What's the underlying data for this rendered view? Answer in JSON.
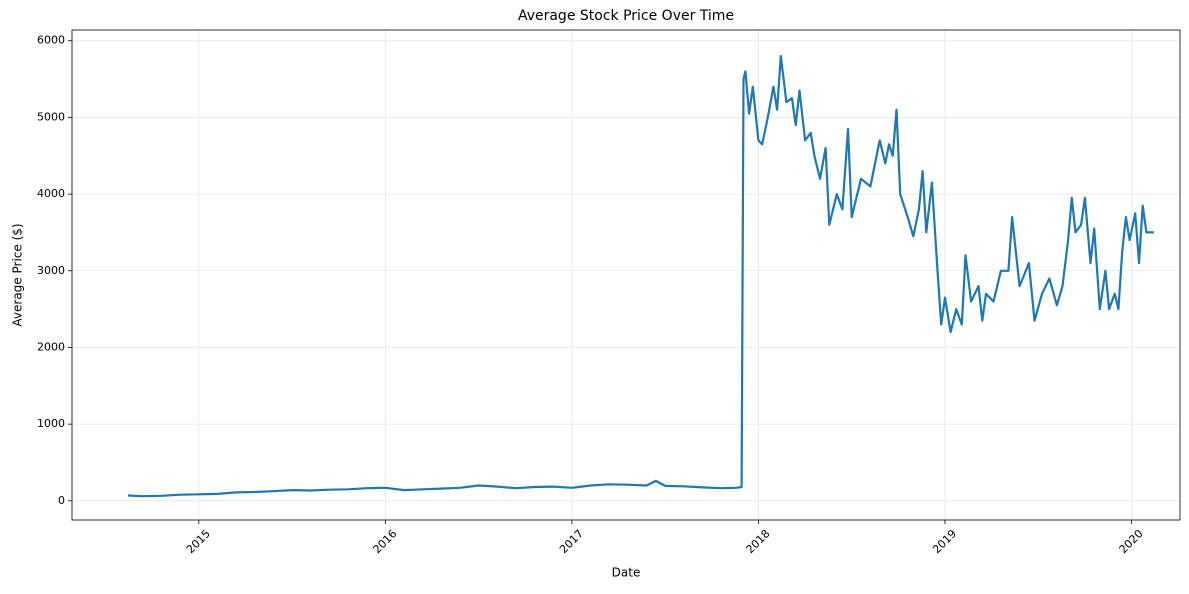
{
  "chart_data": {
    "type": "line",
    "title": "Average Stock Price Over Time",
    "x_label": "Date",
    "y_label": "Average Price ($)",
    "x": [
      2014.62,
      2014.7,
      2014.8,
      2014.9,
      2015.0,
      2015.1,
      2015.2,
      2015.3,
      2015.4,
      2015.5,
      2015.6,
      2015.7,
      2015.8,
      2015.9,
      2016.0,
      2016.1,
      2016.2,
      2016.3,
      2016.4,
      2016.5,
      2016.6,
      2016.7,
      2016.8,
      2016.9,
      2017.0,
      2017.1,
      2017.2,
      2017.3,
      2017.4,
      2017.45,
      2017.5,
      2017.6,
      2017.7,
      2017.8,
      2017.88,
      2017.91,
      2017.92,
      2017.93,
      2017.95,
      2017.97,
      2018.0,
      2018.02,
      2018.05,
      2018.08,
      2018.1,
      2018.12,
      2018.15,
      2018.18,
      2018.2,
      2018.22,
      2018.25,
      2018.28,
      2018.3,
      2018.33,
      2018.36,
      2018.38,
      2018.42,
      2018.45,
      2018.48,
      2018.5,
      2018.55,
      2018.6,
      2018.65,
      2018.68,
      2018.7,
      2018.72,
      2018.74,
      2018.76,
      2018.8,
      2018.83,
      2018.86,
      2018.88,
      2018.9,
      2018.93,
      2018.96,
      2018.98,
      2019.0,
      2019.03,
      2019.06,
      2019.09,
      2019.11,
      2019.14,
      2019.18,
      2019.2,
      2019.22,
      2019.26,
      2019.3,
      2019.34,
      2019.36,
      2019.4,
      2019.45,
      2019.48,
      2019.52,
      2019.56,
      2019.6,
      2019.63,
      2019.66,
      2019.68,
      2019.7,
      2019.73,
      2019.75,
      2019.78,
      2019.8,
      2019.83,
      2019.86,
      2019.88,
      2019.91,
      2019.93,
      2019.95,
      2019.97,
      2019.99,
      2020.02,
      2020.04,
      2020.06,
      2020.08,
      2020.12
    ],
    "values": [
      70,
      60,
      65,
      80,
      85,
      90,
      110,
      115,
      125,
      140,
      135,
      145,
      150,
      165,
      170,
      140,
      150,
      160,
      170,
      200,
      185,
      165,
      180,
      185,
      170,
      200,
      215,
      210,
      200,
      260,
      195,
      190,
      175,
      165,
      170,
      180,
      5500,
      5600,
      5050,
      5400,
      4700,
      4650,
      5000,
      5400,
      5100,
      5800,
      5200,
      5250,
      4900,
      5350,
      4700,
      4800,
      4500,
      4200,
      4600,
      3600,
      4000,
      3800,
      4850,
      3700,
      4200,
      4100,
      4700,
      4400,
      4650,
      4500,
      5100,
      4000,
      3700,
      3450,
      3800,
      4300,
      3500,
      4150,
      3000,
      2300,
      2650,
      2200,
      2500,
      2300,
      3200,
      2600,
      2800,
      2350,
      2700,
      2600,
      3000,
      3000,
      3700,
      2800,
      3100,
      2350,
      2700,
      2900,
      2550,
      2800,
      3400,
      3950,
      3500,
      3600,
      3950,
      3100,
      3550,
      2500,
      3000,
      2500,
      2700,
      2500,
      3250,
      3700,
      3400,
      3750,
      3100,
      3850,
      3500,
      3500
    ],
    "color": "#1f77b4",
    "xlim": [
      2014.32,
      2020.26
    ],
    "xticks": [
      2015,
      2016,
      2017,
      2018,
      2019,
      2020
    ],
    "ylim": [
      -250,
      6140
    ],
    "yticks": [
      0,
      1000,
      2000,
      3000,
      4000,
      5000,
      6000
    ],
    "grid": true
  }
}
